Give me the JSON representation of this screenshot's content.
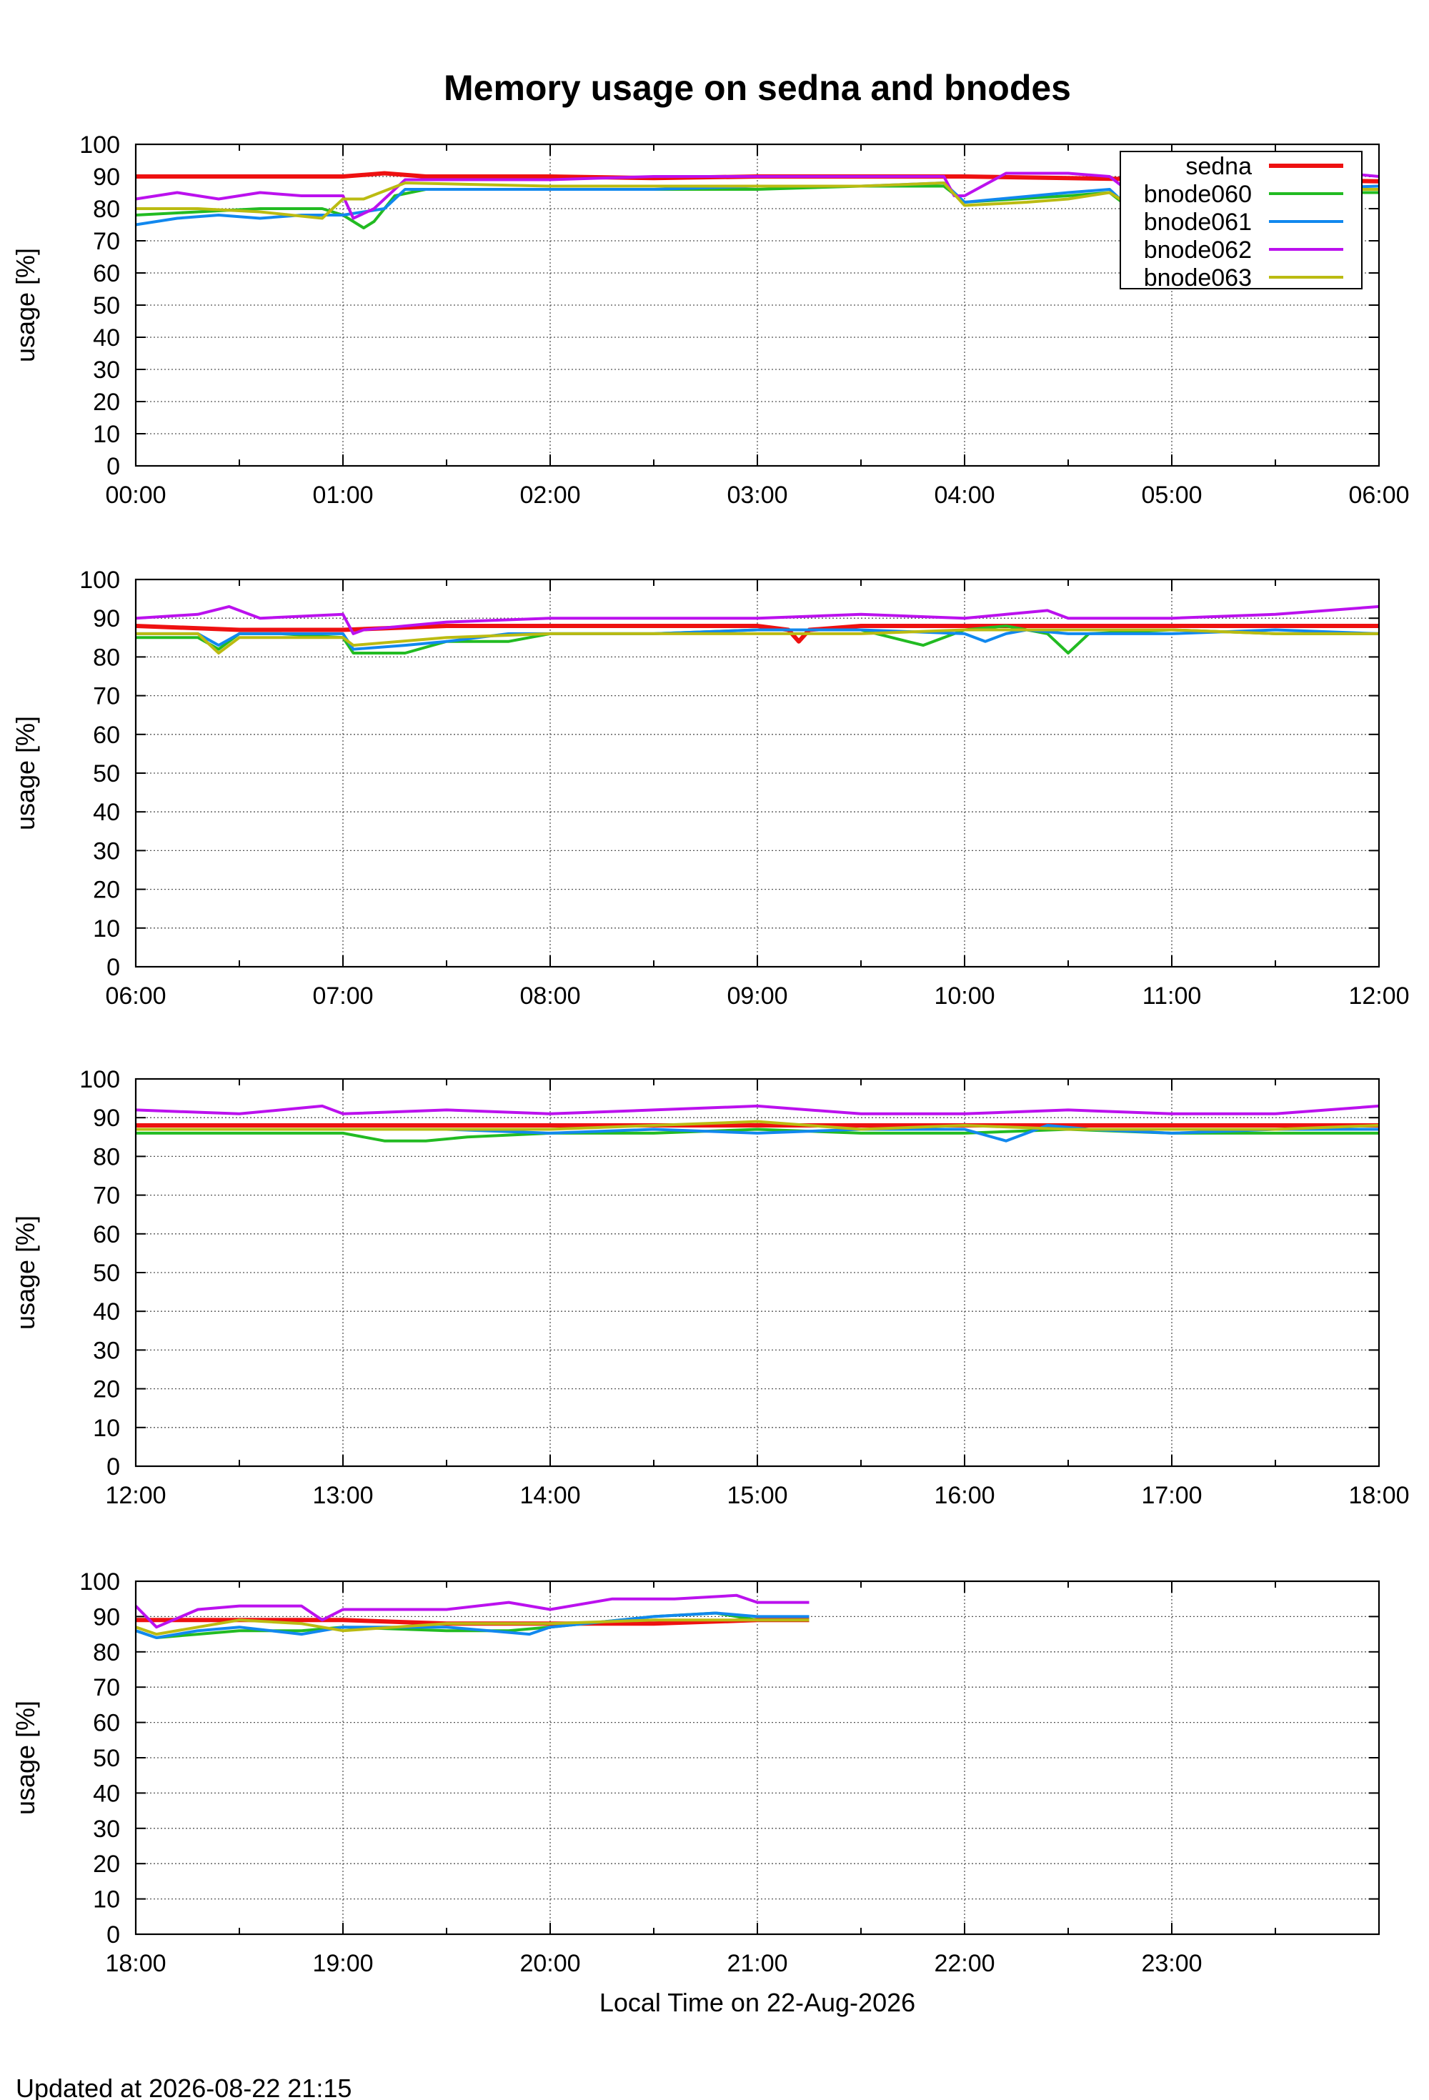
{
  "title": "Memory usage on sedna and bnodes",
  "xlabel": "Local Time on 22-Aug-2026",
  "footer": "Updated at 2026-08-22 21:15",
  "chart_data": {
    "type": "line",
    "title": "Memory usage on sedna and bnodes",
    "ylabel": "usage [%]",
    "xlabel": "Local Time on 22-Aug-2026",
    "ylim": [
      0,
      100
    ],
    "yticks": [
      0,
      10,
      20,
      30,
      40,
      50,
      60,
      70,
      80,
      90,
      100
    ],
    "grid": true,
    "legend_position": "top-right of first panel",
    "series_meta": [
      {
        "name": "sedna",
        "color": "#ee1111",
        "width": 6
      },
      {
        "name": "bnode060",
        "color": "#22bb22",
        "width": 4
      },
      {
        "name": "bnode061",
        "color": "#1188ee",
        "width": 4
      },
      {
        "name": "bnode062",
        "color": "#bb11ee",
        "width": 4
      },
      {
        "name": "bnode063",
        "color": "#bbbb11",
        "width": 4
      }
    ],
    "panels": [
      {
        "xticks": [
          "00:00",
          "01:00",
          "02:00",
          "03:00",
          "04:00",
          "05:00",
          "06:00"
        ],
        "x_range_hours": [
          0,
          6
        ],
        "series": [
          {
            "name": "sedna",
            "hours": [
              0,
              0.5,
              1,
              1.2,
              1.4,
              2,
              2.5,
              3,
              3.5,
              4,
              4.5,
              5,
              5.5,
              6
            ],
            "values": [
              90,
              90,
              90,
              91,
              90,
              90,
              89.5,
              90,
              90,
              90,
              89.5,
              89,
              89,
              88.5
            ]
          },
          {
            "name": "bnode060",
            "hours": [
              0,
              0.3,
              0.6,
              0.9,
              1,
              1.1,
              1.15,
              1.25,
              1.4,
              2,
              2.5,
              3,
              3.5,
              3.9,
              4,
              4.5,
              4.7,
              4.8,
              5,
              5.5,
              6
            ],
            "values": [
              78,
              79,
              80,
              80,
              78,
              74,
              76,
              84,
              86,
              86,
              86,
              86,
              87,
              87,
              82,
              84,
              85,
              80,
              82,
              85,
              85
            ]
          },
          {
            "name": "bnode061",
            "hours": [
              0,
              0.2,
              0.4,
              0.6,
              0.8,
              1,
              1.1,
              1.2,
              1.3,
              2,
              2.5,
              3,
              3.5,
              3.9,
              4,
              4.5,
              4.7,
              4.8,
              5,
              5.5,
              6
            ],
            "values": [
              75,
              77,
              78,
              77,
              78,
              78,
              79,
              80,
              86,
              86,
              86,
              87,
              87,
              88,
              82,
              85,
              86,
              80,
              81,
              86,
              87
            ]
          },
          {
            "name": "bnode062",
            "hours": [
              0,
              0.2,
              0.4,
              0.6,
              0.8,
              1,
              1.05,
              1.15,
              1.3,
              2,
              2.5,
              3,
              3.5,
              3.9,
              3.95,
              4,
              4.2,
              4.5,
              4.7,
              4.8,
              5,
              5.3,
              5.5,
              6
            ],
            "values": [
              83,
              85,
              83,
              85,
              84,
              84,
              77,
              80,
              89,
              89,
              90,
              90,
              90,
              90,
              84,
              84,
              91,
              91,
              90,
              85,
              84,
              92,
              93,
              90
            ]
          },
          {
            "name": "bnode063",
            "hours": [
              0,
              0.3,
              0.6,
              0.9,
              1,
              1.1,
              1.3,
              2,
              2.5,
              3,
              3.5,
              3.9,
              4,
              4.3,
              4.5,
              4.7,
              4.8,
              5,
              5.5,
              6
            ],
            "values": [
              80,
              80,
              79,
              77,
              83,
              83,
              88,
              87,
              87,
              87,
              87,
              88,
              81,
              82,
              83,
              85,
              81,
              83,
              86,
              86
            ]
          }
        ]
      },
      {
        "xticks": [
          "06:00",
          "07:00",
          "08:00",
          "09:00",
          "10:00",
          "11:00",
          "12:00"
        ],
        "x_range_hours": [
          6,
          12
        ],
        "series": [
          {
            "name": "sedna",
            "hours": [
              6,
              6.5,
              7,
              7.5,
              8,
              8.5,
              9,
              9.15,
              9.2,
              9.25,
              9.5,
              10,
              10.5,
              11,
              11.5,
              12
            ],
            "values": [
              88,
              87,
              87,
              88,
              88,
              88,
              88,
              87,
              84,
              87,
              88,
              88,
              88,
              88,
              88,
              88
            ]
          },
          {
            "name": "bnode060",
            "hours": [
              6,
              6.3,
              6.4,
              6.5,
              6.7,
              7,
              7.05,
              7.3,
              7.5,
              7.8,
              8,
              8.5,
              9,
              9.5,
              9.8,
              10,
              10.2,
              10.4,
              10.5,
              10.6,
              11,
              11.5,
              12
            ],
            "values": [
              85,
              85,
              82,
              86,
              86,
              85,
              81,
              81,
              84,
              84,
              86,
              86,
              87,
              87,
              83,
              87,
              88,
              86,
              81,
              86,
              87,
              86,
              86
            ]
          },
          {
            "name": "bnode061",
            "hours": [
              6,
              6.3,
              6.4,
              6.5,
              6.7,
              7,
              7.05,
              7.3,
              7.5,
              7.8,
              8,
              8.5,
              9,
              9.5,
              10,
              10.1,
              10.2,
              10.3,
              10.5,
              11,
              11.5,
              12
            ],
            "values": [
              86,
              86,
              83,
              86,
              86,
              86,
              82,
              83,
              84,
              86,
              86,
              86,
              87,
              87,
              86,
              84,
              86,
              87,
              86,
              86,
              87,
              86
            ]
          },
          {
            "name": "bnode062",
            "hours": [
              6,
              6.3,
              6.45,
              6.6,
              7,
              7.05,
              7.1,
              7.3,
              7.5,
              8,
              8.5,
              9,
              9.5,
              10,
              10.2,
              10.4,
              10.5,
              11,
              11.5,
              12
            ],
            "values": [
              90,
              91,
              93,
              90,
              91,
              86,
              87,
              88,
              89,
              90,
              90,
              90,
              91,
              90,
              91,
              92,
              90,
              90,
              91,
              93
            ]
          },
          {
            "name": "bnode063",
            "hours": [
              6,
              6.3,
              6.4,
              6.5,
              7,
              7.05,
              7.5,
              8,
              8.5,
              9,
              9.5,
              10,
              10.5,
              11,
              11.5,
              12
            ],
            "values": [
              86,
              86,
              81,
              85,
              85,
              83,
              85,
              86,
              86,
              86,
              86,
              87,
              87,
              87,
              86,
              86
            ]
          }
        ]
      },
      {
        "xticks": [
          "12:00",
          "13:00",
          "14:00",
          "15:00",
          "16:00",
          "17:00",
          "18:00"
        ],
        "x_range_hours": [
          12,
          18
        ],
        "series": [
          {
            "name": "sedna",
            "hours": [
              12,
              12.5,
              13,
              13.5,
              14,
              14.5,
              15,
              15.5,
              16,
              16.5,
              17,
              17.5,
              18
            ],
            "values": [
              88,
              88,
              88,
              88,
              88,
              88,
              88,
              88,
              88,
              88,
              88,
              88,
              88
            ]
          },
          {
            "name": "bnode060",
            "hours": [
              12,
              12.5,
              13,
              13.2,
              13.4,
              13.6,
              14,
              14.5,
              15,
              15.5,
              16,
              16.5,
              17,
              17.5,
              18
            ],
            "values": [
              86,
              86,
              86,
              84,
              84,
              85,
              86,
              86,
              87,
              86,
              86,
              87,
              86,
              86,
              86
            ]
          },
          {
            "name": "bnode061",
            "hours": [
              12,
              12.5,
              13,
              13.5,
              14,
              14.5,
              15,
              15.5,
              16,
              16.2,
              16.4,
              16.6,
              17,
              17.5,
              18
            ],
            "values": [
              87,
              87,
              87,
              87,
              86,
              87,
              86,
              87,
              87,
              84,
              88,
              87,
              86,
              87,
              87
            ]
          },
          {
            "name": "bnode062",
            "hours": [
              12,
              12.5,
              12.9,
              13,
              13.5,
              14,
              14.5,
              15,
              15.5,
              16,
              16.5,
              17,
              17.5,
              18
            ],
            "values": [
              92,
              91,
              93,
              91,
              92,
              91,
              92,
              93,
              91,
              91,
              92,
              91,
              91,
              93
            ]
          },
          {
            "name": "bnode063",
            "hours": [
              12,
              12.5,
              13,
              13.5,
              14,
              14.5,
              15,
              15.5,
              16,
              16.5,
              17,
              17.5,
              18
            ],
            "values": [
              87,
              87,
              87,
              87,
              87,
              88,
              89,
              87,
              88,
              87,
              87,
              87,
              88
            ]
          }
        ]
      },
      {
        "xticks": [
          "18:00",
          "19:00",
          "20:00",
          "21:00",
          "22:00",
          "23:00"
        ],
        "x_range_hours": [
          18,
          24
        ],
        "series": [
          {
            "name": "sedna",
            "hours": [
              18,
              18.5,
              19,
              19.5,
              20,
              20.5,
              21,
              21.25
            ],
            "values": [
              89,
              89,
              89,
              88,
              88,
              88,
              89,
              89
            ]
          },
          {
            "name": "bnode060",
            "hours": [
              18,
              18.1,
              18.3,
              18.5,
              18.8,
              19,
              19.5,
              19.8,
              20,
              20.5,
              20.8,
              21,
              21.25
            ],
            "values": [
              86,
              84,
              85,
              86,
              86,
              87,
              86,
              86,
              87,
              90,
              91,
              89,
              89
            ]
          },
          {
            "name": "bnode061",
            "hours": [
              18,
              18.1,
              18.3,
              18.5,
              18.8,
              19,
              19.5,
              19.9,
              20,
              20.5,
              20.8,
              21,
              21.25
            ],
            "values": [
              86,
              84,
              86,
              87,
              85,
              87,
              87,
              85,
              87,
              90,
              91,
              90,
              90
            ]
          },
          {
            "name": "bnode062",
            "hours": [
              18,
              18.1,
              18.3,
              18.5,
              18.8,
              18.9,
              19,
              19.5,
              19.8,
              20,
              20.3,
              20.6,
              20.9,
              21,
              21.25
            ],
            "values": [
              93,
              87,
              92,
              93,
              93,
              89,
              92,
              92,
              94,
              92,
              95,
              95,
              96,
              94,
              94
            ]
          },
          {
            "name": "bnode063",
            "hours": [
              18,
              18.1,
              18.5,
              18.8,
              19,
              19.5,
              20,
              20.5,
              21,
              21.25
            ],
            "values": [
              87,
              85,
              89,
              88,
              86,
              88,
              88,
              89,
              89,
              89
            ]
          }
        ]
      }
    ]
  }
}
